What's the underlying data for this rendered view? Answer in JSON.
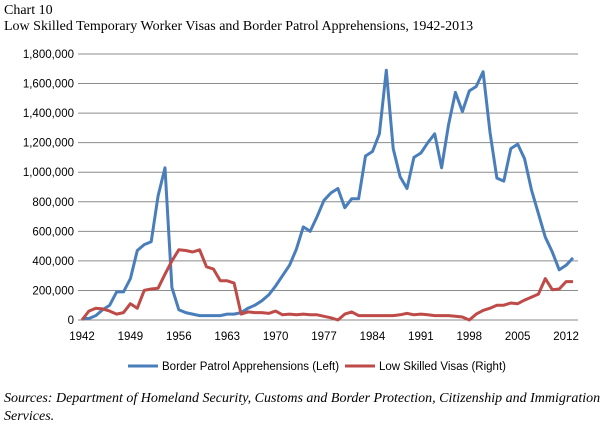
{
  "chart_data": {
    "type": "line",
    "label": "Chart 10",
    "title": "Low Skilled Temporary Worker Visas and Border Patrol Apprehensions, 1942-2013",
    "xlabel": "",
    "ylabel": "",
    "ylim": [
      0,
      1800000
    ],
    "yticks": [
      "0",
      "200,000",
      "400,000",
      "600,000",
      "800,000",
      "1,000,000",
      "1,200,000",
      "1,400,000",
      "1,600,000",
      "1,800,000"
    ],
    "xticks": [
      "1942",
      "1949",
      "1956",
      "1963",
      "1970",
      "1977",
      "1984",
      "1991",
      "1998",
      "2005",
      "2012"
    ],
    "grid": true,
    "legend_position": "bottom",
    "x": [
      1942,
      1943,
      1944,
      1945,
      1946,
      1947,
      1948,
      1949,
      1950,
      1951,
      1952,
      1953,
      1954,
      1955,
      1956,
      1957,
      1958,
      1959,
      1960,
      1961,
      1962,
      1963,
      1964,
      1965,
      1966,
      1967,
      1968,
      1969,
      1970,
      1971,
      1972,
      1973,
      1974,
      1975,
      1976,
      1977,
      1978,
      1979,
      1980,
      1981,
      1982,
      1983,
      1984,
      1985,
      1986,
      1987,
      1988,
      1989,
      1990,
      1991,
      1992,
      1993,
      1994,
      1995,
      1996,
      1997,
      1998,
      1999,
      2000,
      2001,
      2002,
      2003,
      2004,
      2005,
      2006,
      2007,
      2008,
      2009,
      2010,
      2011,
      2012,
      2013
    ],
    "series": [
      {
        "name": "Border Patrol Apprehensions (Left)",
        "color": "#4a7ebb",
        "values": [
          10000,
          10000,
          30000,
          70000,
          100000,
          190000,
          190000,
          280000,
          470000,
          510000,
          530000,
          840000,
          1030000,
          220000,
          70000,
          50000,
          40000,
          30000,
          30000,
          30000,
          30000,
          40000,
          40000,
          50000,
          80000,
          100000,
          130000,
          170000,
          230000,
          300000,
          370000,
          480000,
          630000,
          600000,
          700000,
          810000,
          860000,
          890000,
          760000,
          820000,
          820000,
          1110000,
          1140000,
          1260000,
          1690000,
          1160000,
          970000,
          890000,
          1100000,
          1130000,
          1200000,
          1260000,
          1030000,
          1320000,
          1540000,
          1410000,
          1550000,
          1580000,
          1680000,
          1270000,
          960000,
          940000,
          1160000,
          1190000,
          1090000,
          880000,
          720000,
          560000,
          460000,
          340000,
          370000,
          420000
        ]
      },
      {
        "name": "Low Skilled Visas (Right)",
        "color": "#be4b48",
        "values": [
          0,
          60000,
          80000,
          75000,
          60000,
          40000,
          50000,
          110000,
          80000,
          200000,
          210000,
          215000,
          310000,
          400000,
          475000,
          470000,
          460000,
          475000,
          360000,
          345000,
          265000,
          265000,
          250000,
          40000,
          55000,
          50000,
          50000,
          45000,
          60000,
          35000,
          40000,
          35000,
          40000,
          35000,
          35000,
          25000,
          15000,
          0,
          40000,
          55000,
          30000,
          30000,
          30000,
          30000,
          30000,
          30000,
          35000,
          45000,
          35000,
          40000,
          35000,
          30000,
          30000,
          30000,
          25000,
          20000,
          0,
          40000,
          65000,
          80000,
          100000,
          100000,
          115000,
          110000,
          135000,
          155000,
          175000,
          280000,
          205000,
          210000,
          260000,
          260000
        ]
      }
    ]
  },
  "source": "Sources: Department of Homeland Security, Customs and Border Protection, Citizenship and Immigration Services."
}
